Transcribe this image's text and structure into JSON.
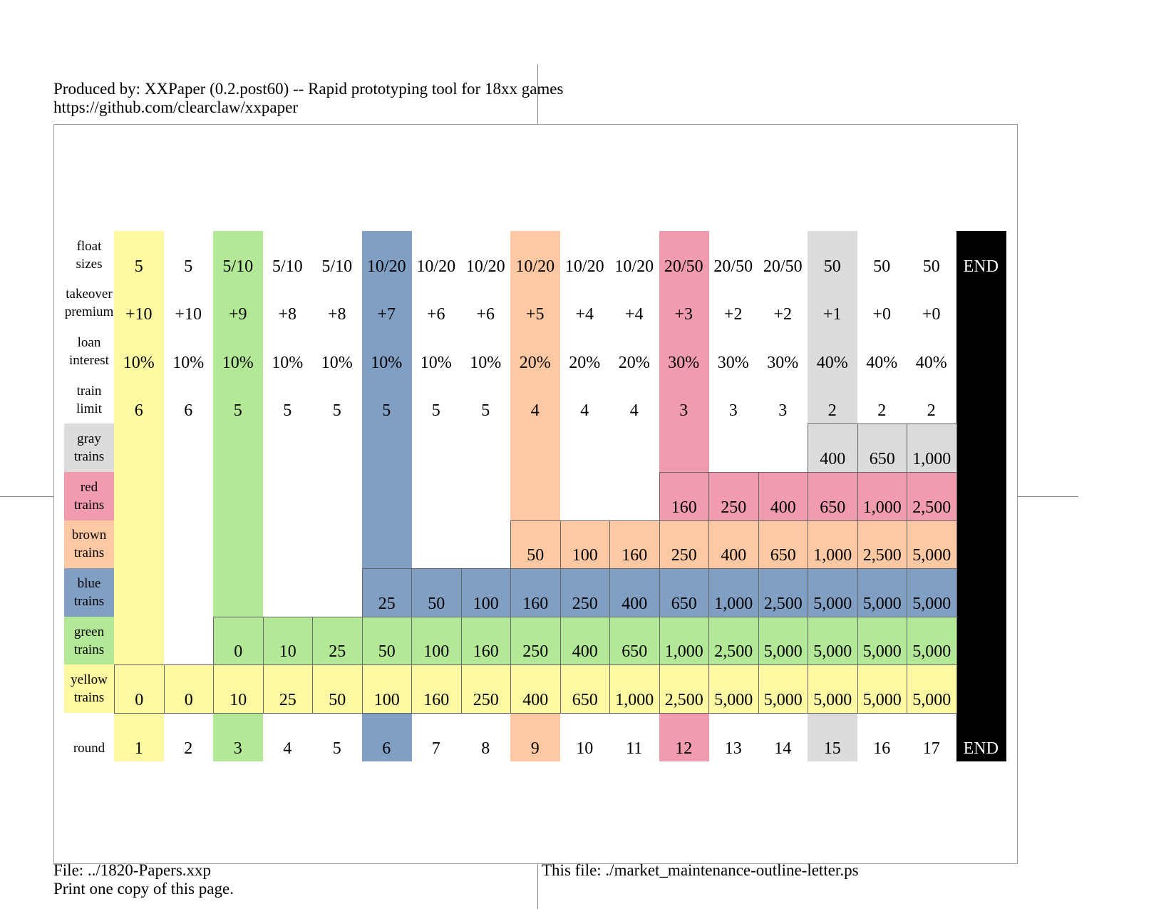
{
  "header": {
    "line1": "Produced by: XXPaper (0.2.post60) -- Rapid prototyping tool for 18xx games",
    "line2": "https://github.com/clearclaw/xxpaper"
  },
  "footer": {
    "file": "File: ../1820-Papers.xxp",
    "copies": "Print one copy of this page.",
    "this_file": "This file: ./market_maintenance-outline-letter.ps"
  },
  "colors": {
    "yellow": "#fdf8a2",
    "green": "#b3e896",
    "blue": "#809fc2",
    "brown": "#fec9a2",
    "red": "#f19cae",
    "gray": "#dcdcdc",
    "black": "#000000"
  },
  "columns": [
    "1",
    "2",
    "3",
    "4",
    "5",
    "6",
    "7",
    "8",
    "9",
    "10",
    "11",
    "12",
    "13",
    "14",
    "15",
    "16",
    "17",
    "END"
  ],
  "column_colors": [
    "yellow",
    "white",
    "green",
    "white",
    "white",
    "blue",
    "white",
    "white",
    "brown",
    "white",
    "white",
    "red",
    "white",
    "white",
    "gray",
    "white",
    "white",
    "black"
  ],
  "rows": {
    "float_sizes": {
      "label": "float\nsizes",
      "values": [
        "5",
        "5",
        "5/10",
        "5/10",
        "5/10",
        "10/20",
        "10/20",
        "10/20",
        "10/20",
        "10/20",
        "10/20",
        "20/50",
        "20/50",
        "20/50",
        "50",
        "50",
        "50",
        "END"
      ]
    },
    "takeover_premium": {
      "label": "takeover\npremium",
      "values": [
        "+10",
        "+10",
        "+9",
        "+8",
        "+8",
        "+7",
        "+6",
        "+6",
        "+5",
        "+4",
        "+4",
        "+3",
        "+2",
        "+2",
        "+1",
        "+0",
        "+0",
        ""
      ]
    },
    "loan_interest": {
      "label": "loan\ninterest",
      "values": [
        "10%",
        "10%",
        "10%",
        "10%",
        "10%",
        "10%",
        "10%",
        "10%",
        "20%",
        "20%",
        "20%",
        "30%",
        "30%",
        "30%",
        "40%",
        "40%",
        "40%",
        ""
      ]
    },
    "train_limit": {
      "label": "train\nlimit",
      "values": [
        "6",
        "6",
        "5",
        "5",
        "5",
        "5",
        "5",
        "5",
        "4",
        "4",
        "4",
        "3",
        "3",
        "3",
        "2",
        "2",
        "2",
        ""
      ]
    }
  },
  "trains": [
    {
      "key": "gray",
      "label": "gray\ntrains",
      "start": 15,
      "values": [
        "400",
        "650",
        "1,000"
      ]
    },
    {
      "key": "red",
      "label": "red\ntrains",
      "start": 12,
      "values": [
        "160",
        "250",
        "400",
        "650",
        "1,000",
        "2,500"
      ]
    },
    {
      "key": "brown",
      "label": "brown\ntrains",
      "start": 9,
      "values": [
        "50",
        "100",
        "160",
        "250",
        "400",
        "650",
        "1,000",
        "2,500",
        "5,000"
      ]
    },
    {
      "key": "blue",
      "label": "blue\ntrains",
      "start": 6,
      "values": [
        "25",
        "50",
        "100",
        "160",
        "250",
        "400",
        "650",
        "1,000",
        "2,500",
        "5,000",
        "5,000",
        "5,000"
      ]
    },
    {
      "key": "green",
      "label": "green\ntrains",
      "start": 3,
      "values": [
        "0",
        "10",
        "25",
        "50",
        "100",
        "160",
        "250",
        "400",
        "650",
        "1,000",
        "2,500",
        "5,000",
        "5,000",
        "5,000",
        "5,000"
      ]
    },
    {
      "key": "yellow",
      "label": "yellow\ntrains",
      "start": 1,
      "values": [
        "0",
        "0",
        "10",
        "25",
        "50",
        "100",
        "160",
        "250",
        "400",
        "650",
        "1,000",
        "2,500",
        "5,000",
        "5,000",
        "5,000",
        "5,000",
        "5,000"
      ]
    }
  ],
  "round": {
    "label": "round",
    "values": [
      "1",
      "2",
      "3",
      "4",
      "5",
      "6",
      "7",
      "8",
      "9",
      "10",
      "11",
      "12",
      "13",
      "14",
      "15",
      "16",
      "17",
      "END"
    ]
  }
}
